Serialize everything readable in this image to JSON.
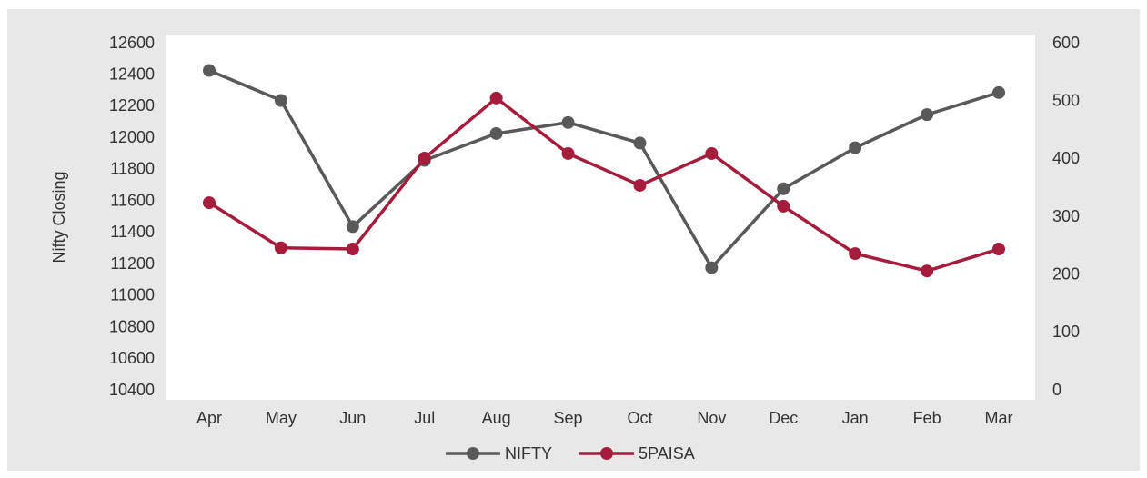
{
  "chart_data": {
    "type": "line",
    "y_label": "Nifty Closing",
    "categories": [
      "Apr",
      "May",
      "Jun",
      "Jul",
      "Aug",
      "Sep",
      "Oct",
      "Nov",
      "Dec",
      "Jan",
      "Feb",
      "Mar"
    ],
    "series": [
      {
        "name": "NIFTY",
        "color": "#595959",
        "values": [
          12430,
          12240,
          11440,
          11860,
          12030,
          12100,
          11970,
          11180,
          11680,
          11940,
          12150,
          12290
        ]
      },
      {
        "name": "5PAISA",
        "color": "#a51c3c",
        "axis": "y2",
        "values": [
          325,
          247,
          245,
          402,
          506,
          410,
          355,
          410,
          319,
          237,
          207,
          245
        ]
      }
    ],
    "ylim": [
      10400,
      12600
    ],
    "yticks": [
      10400,
      10600,
      10800,
      11000,
      11200,
      11400,
      11600,
      11800,
      12000,
      12200,
      12400,
      12600
    ],
    "y2lim": [
      0,
      600
    ],
    "y2ticks": [
      0,
      100,
      200,
      300,
      400,
      500,
      600
    ],
    "legend": "bottom"
  }
}
